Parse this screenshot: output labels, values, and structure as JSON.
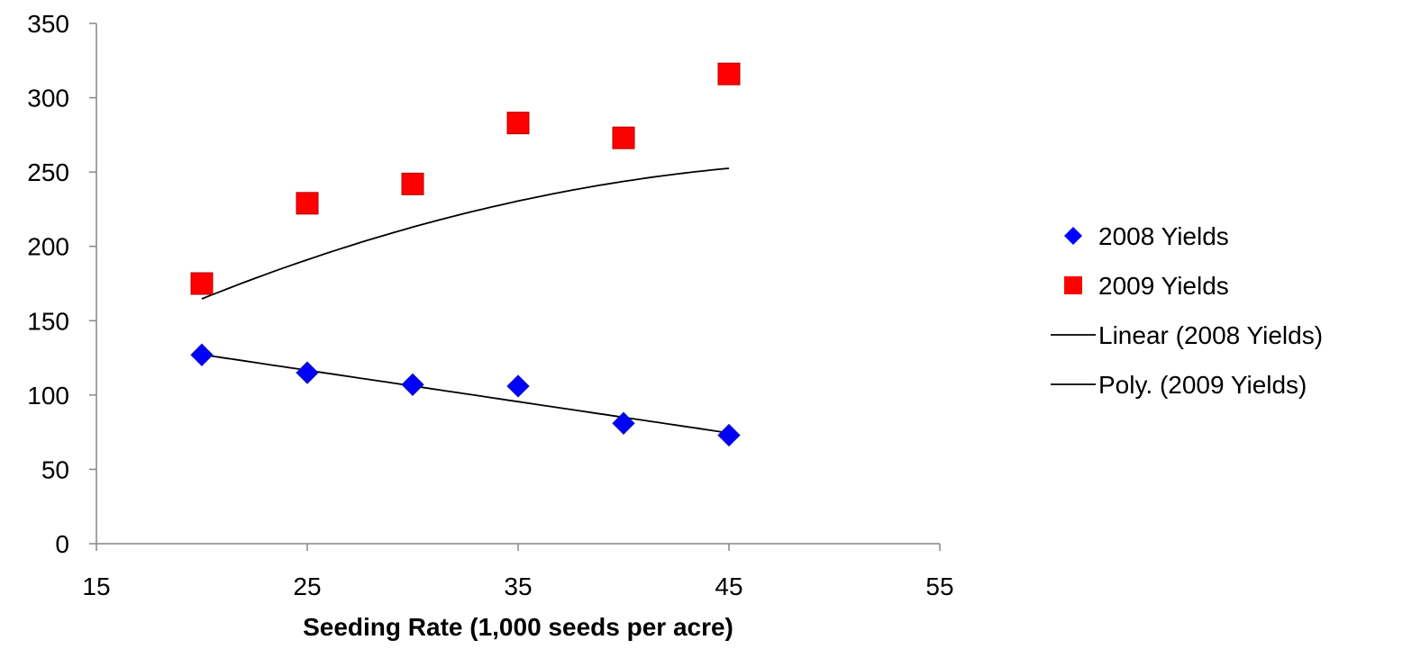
{
  "chart_data": {
    "type": "scatter",
    "title": "",
    "xlabel": "Seeding Rate (1,000 seeds per acre)",
    "ylabel": "",
    "xlim": [
      15,
      55
    ],
    "ylim": [
      0,
      350
    ],
    "x_ticks": [
      15,
      25,
      35,
      45,
      55
    ],
    "y_ticks": [
      0,
      50,
      100,
      150,
      200,
      250,
      300,
      350
    ],
    "grid": false,
    "legend_position": "right",
    "series": [
      {
        "name": "2008 Yields",
        "marker": "diamond",
        "color": "#0000ff",
        "x": [
          20,
          25,
          30,
          35,
          40,
          45
        ],
        "y": [
          127,
          115,
          107,
          106,
          81,
          73
        ]
      },
      {
        "name": "2009 Yields",
        "marker": "square",
        "color": "#ff0000",
        "x": [
          20,
          25,
          30,
          35,
          40,
          45
        ],
        "y": [
          175,
          229,
          242,
          283,
          273,
          316
        ]
      }
    ],
    "trendlines": [
      {
        "name": "Linear (2008 Yields)",
        "type": "linear",
        "color": "#000000",
        "x_range": [
          20,
          45
        ],
        "coefficients": [
          169.4,
          -2.11
        ]
      },
      {
        "name": "Poly. (2009 Yields)",
        "type": "polynomial",
        "color": "#000000",
        "x_range": [
          20,
          45
        ],
        "coefficients": [
          15.7,
          9.2,
          -0.0875
        ]
      }
    ]
  }
}
